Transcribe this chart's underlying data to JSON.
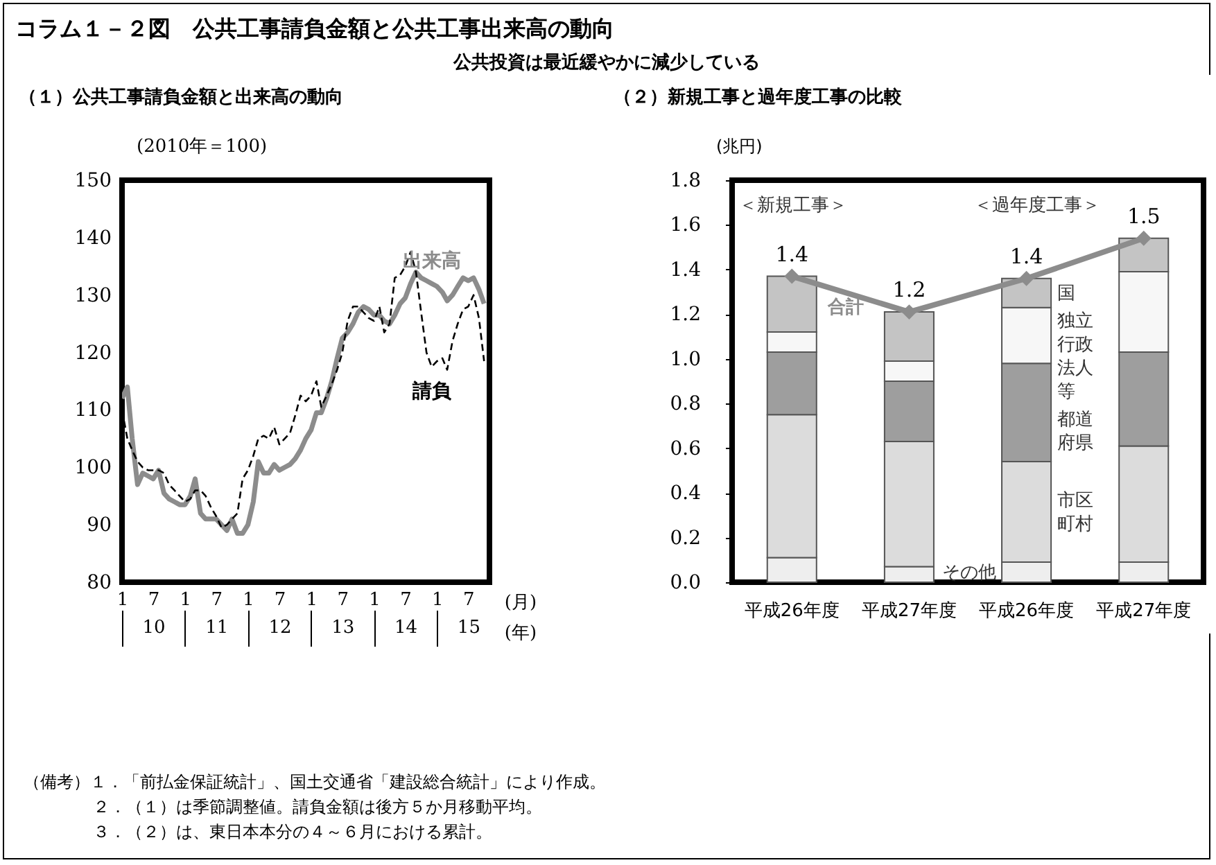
{
  "chart_data": [
    {
      "type": "other",
      "title": "コラム１－２図　公共工事請負金額と公共工事出来高の動向",
      "subtitle": "公共投資は最近緩やかに減少している",
      "annotations": [
        "（備考）１．「前払金保証統計」、国土交通省「建設総合統計」により作成。",
        "２．（１）は季節調整値。請負金額は後方５か月移動平均。",
        "３．（２）は、東日本本分の４～６月における累計。"
      ]
    },
    {
      "type": "line",
      "title": "（１）公共工事請負金額と出来高の動向",
      "ylabel": "(2010年＝100)",
      "xlabel": "(月)",
      "x2label": "(年)",
      "x": [
        "2010-01",
        "2010-02",
        "2010-03",
        "2010-04",
        "2010-05",
        "2010-06",
        "2010-07",
        "2010-08",
        "2010-09",
        "2010-10",
        "2010-11",
        "2010-12",
        "2011-01",
        "2011-02",
        "2011-03",
        "2011-04",
        "2011-05",
        "2011-06",
        "2011-07",
        "2011-08",
        "2011-09",
        "2011-10",
        "2011-11",
        "2011-12",
        "2012-01",
        "2012-02",
        "2012-03",
        "2012-04",
        "2012-05",
        "2012-06",
        "2012-07",
        "2012-08",
        "2012-09",
        "2012-10",
        "2012-11",
        "2012-12",
        "2013-01",
        "2013-02",
        "2013-03",
        "2013-04",
        "2013-05",
        "2013-06",
        "2013-07",
        "2013-08",
        "2013-09",
        "2013-10",
        "2013-11",
        "2013-12",
        "2014-01",
        "2014-02",
        "2014-03",
        "2014-04",
        "2014-05",
        "2014-06",
        "2014-07",
        "2014-08",
        "2014-09",
        "2014-10",
        "2014-11",
        "2014-12",
        "2015-01",
        "2015-02",
        "2015-03",
        "2015-04",
        "2015-05",
        "2015-06",
        "2015-07",
        "2015-08",
        "2015-09",
        "2015-10"
      ],
      "series": [
        {
          "name": "出来高",
          "color": "#8c8c8c",
          "line_style": "solid",
          "values": [
            112,
            114,
            105,
            97,
            99,
            98.5,
            98,
            99.5,
            95.5,
            94.5,
            94,
            93.5,
            93.5,
            95,
            98,
            92,
            91,
            91,
            91,
            90,
            89,
            91,
            88.5,
            88.5,
            90,
            94,
            101,
            99,
            99,
            100.5,
            99.5,
            100,
            100.5,
            101.5,
            103,
            105,
            106.5,
            109.5,
            109.5,
            112,
            115,
            119,
            122.5,
            123.5,
            125,
            127,
            128,
            127.5,
            126.5,
            126.5,
            125.5,
            125,
            126.5,
            128.5,
            129.5,
            132,
            134,
            133,
            132.5,
            132,
            131.5,
            130.5,
            129,
            130,
            131.5,
            133,
            132.5,
            133,
            131,
            128.5
          ]
        },
        {
          "name": "請負",
          "color": "#000000",
          "line_style": "dashed",
          "values": [
            110,
            105,
            103,
            101,
            100,
            99.5,
            99.5,
            99.5,
            99,
            97,
            96,
            95,
            94,
            94.5,
            96,
            96,
            95,
            93,
            91.5,
            89.5,
            90,
            91,
            92,
            98,
            99.5,
            102,
            105,
            105.5,
            105,
            107,
            104,
            105,
            106,
            109,
            112.5,
            111.5,
            112.5,
            115,
            110.5,
            112.5,
            114.5,
            117,
            120,
            125.5,
            128,
            128,
            127,
            126,
            125.5,
            128,
            123.5,
            125,
            133,
            133.5,
            135,
            137.5,
            134,
            127,
            120,
            117.5,
            118.5,
            119,
            117,
            122,
            125,
            127.5,
            128,
            130,
            126,
            118.5
          ]
        }
      ],
      "xlim": [
        "2010-01",
        "2015-11"
      ],
      "xticks": [
        {
          "value": "2010-01",
          "label": "1"
        },
        {
          "value": "2010-07",
          "label": "7"
        },
        {
          "value": "2011-01",
          "label": "1"
        },
        {
          "value": "2011-07",
          "label": "7"
        },
        {
          "value": "2012-01",
          "label": "1"
        },
        {
          "value": "2012-07",
          "label": "7"
        },
        {
          "value": "2013-01",
          "label": "1"
        },
        {
          "value": "2013-07",
          "label": "7"
        },
        {
          "value": "2014-01",
          "label": "1"
        },
        {
          "value": "2014-07",
          "label": "7"
        },
        {
          "value": "2015-01",
          "label": "1"
        },
        {
          "value": "2015-07",
          "label": "7"
        }
      ],
      "x2lim": [
        "2010-01",
        "2015-11"
      ],
      "x2ticks": [
        {
          "value": "2010-07",
          "label": "10"
        },
        {
          "value": "2011-07",
          "label": "11"
        },
        {
          "value": "2012-07",
          "label": "12"
        },
        {
          "value": "2013-07",
          "label": "13"
        },
        {
          "value": "2014-07",
          "label": "14"
        },
        {
          "value": "2015-07",
          "label": "15"
        }
      ],
      "ylim": [
        80,
        150
      ],
      "yticks": [
        80,
        90,
        100,
        110,
        120,
        130,
        140,
        150
      ],
      "grid": false,
      "legend": false
    },
    {
      "type": "bar",
      "title": "（２）新規工事と過年度工事の比較",
      "ylabel": "(兆円)",
      "stacked": true,
      "categories": [
        "平成26年度",
        "平成27年度",
        "平成26年度",
        "平成27年度"
      ],
      "series": [
        {
          "name": "その他",
          "color": "#eeeeee",
          "values": [
            0.11,
            0.07,
            0.09,
            0.09
          ]
        },
        {
          "name": "市区町村",
          "color": "#dcdcdc",
          "values": [
            0.64,
            0.56,
            0.45,
            0.52
          ]
        },
        {
          "name": "都道府県",
          "color": "#9e9e9e",
          "values": [
            0.28,
            0.27,
            0.44,
            0.42
          ]
        },
        {
          "name": "独立行政法人等",
          "color": "#f7f7f7",
          "values": [
            0.09,
            0.09,
            0.25,
            0.36
          ]
        },
        {
          "name": "国",
          "color": "#c4c4c4",
          "values": [
            0.25,
            0.22,
            0.13,
            0.15
          ]
        },
        {
          "name": "合計",
          "type": "line",
          "color": "#8c8c8c",
          "marker": "diamond",
          "values": [
            1.37,
            1.21,
            1.36,
            1.54
          ],
          "value_labels": [
            "1.4",
            "1.2",
            "1.4",
            "1.5"
          ]
        }
      ],
      "ylim": [
        0,
        1.8
      ],
      "yticks": [
        {
          "value": 0,
          "label": "0.0"
        },
        0.2,
        0.4,
        0.6,
        0.8,
        {
          "value": 1,
          "label": "1.0"
        },
        1.2,
        1.4,
        1.6,
        1.8
      ],
      "grid": false,
      "legend": false,
      "annotations": [
        "＜新規工事＞",
        "＜過年度工事＞"
      ]
    }
  ]
}
